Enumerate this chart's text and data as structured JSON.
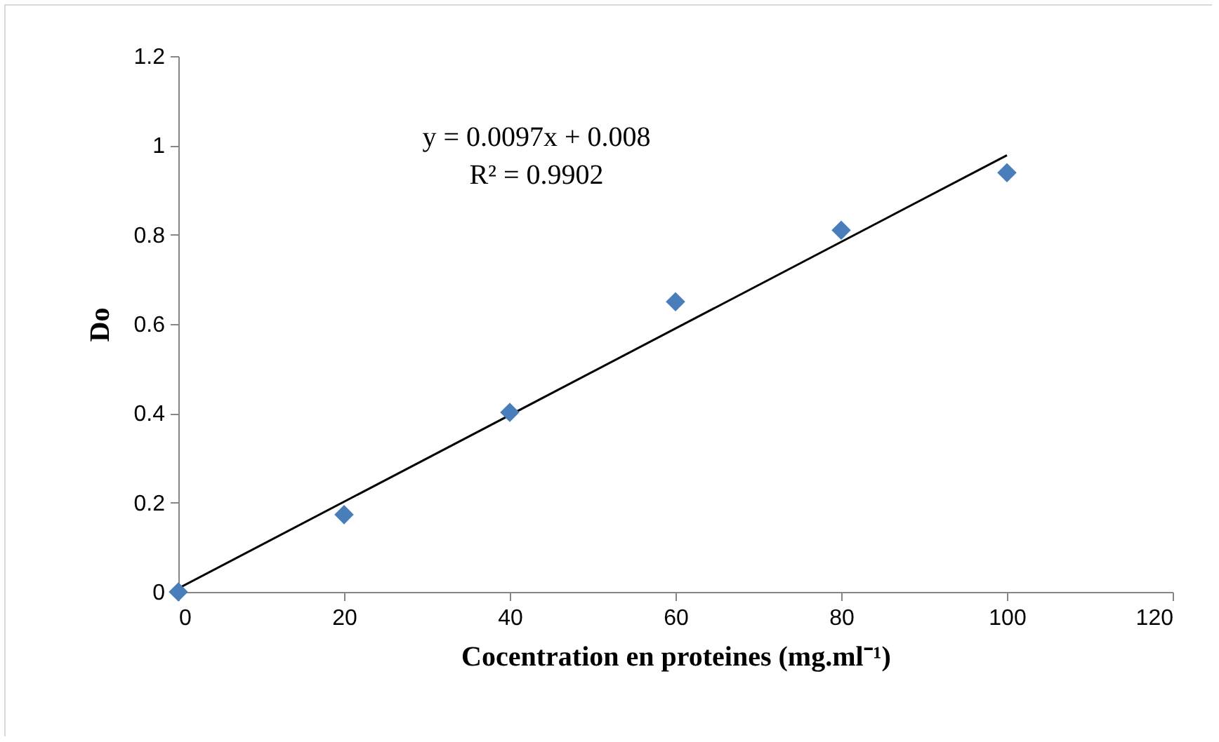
{
  "chart_data": {
    "type": "scatter",
    "xlabel": "Cocentration en proteines (mg.ml⁻¹)",
    "ylabel": "Do",
    "annotations": [
      "y = 0.0097x + 0.008",
      "R² = 0.9902"
    ],
    "x": [
      0,
      20,
      40,
      60,
      80,
      100
    ],
    "series": [
      {
        "color": "#4a7ebb",
        "marker": "diamond",
        "values": [
          0,
          0.173,
          0.402,
          0.65,
          0.81,
          0.939
        ]
      },
      {
        "type": "line",
        "color": "#000000",
        "x": [
          0,
          100
        ],
        "values": [
          0.008,
          0.978
        ]
      }
    ],
    "xlim": [
      0,
      120
    ],
    "xticks": [
      0,
      20,
      40,
      60,
      80,
      100,
      120
    ],
    "ylim": [
      0,
      1.2
    ],
    "yticks": [
      0,
      0.2,
      0.4,
      0.6,
      0.8,
      1,
      1.2
    ],
    "grid": false
  }
}
